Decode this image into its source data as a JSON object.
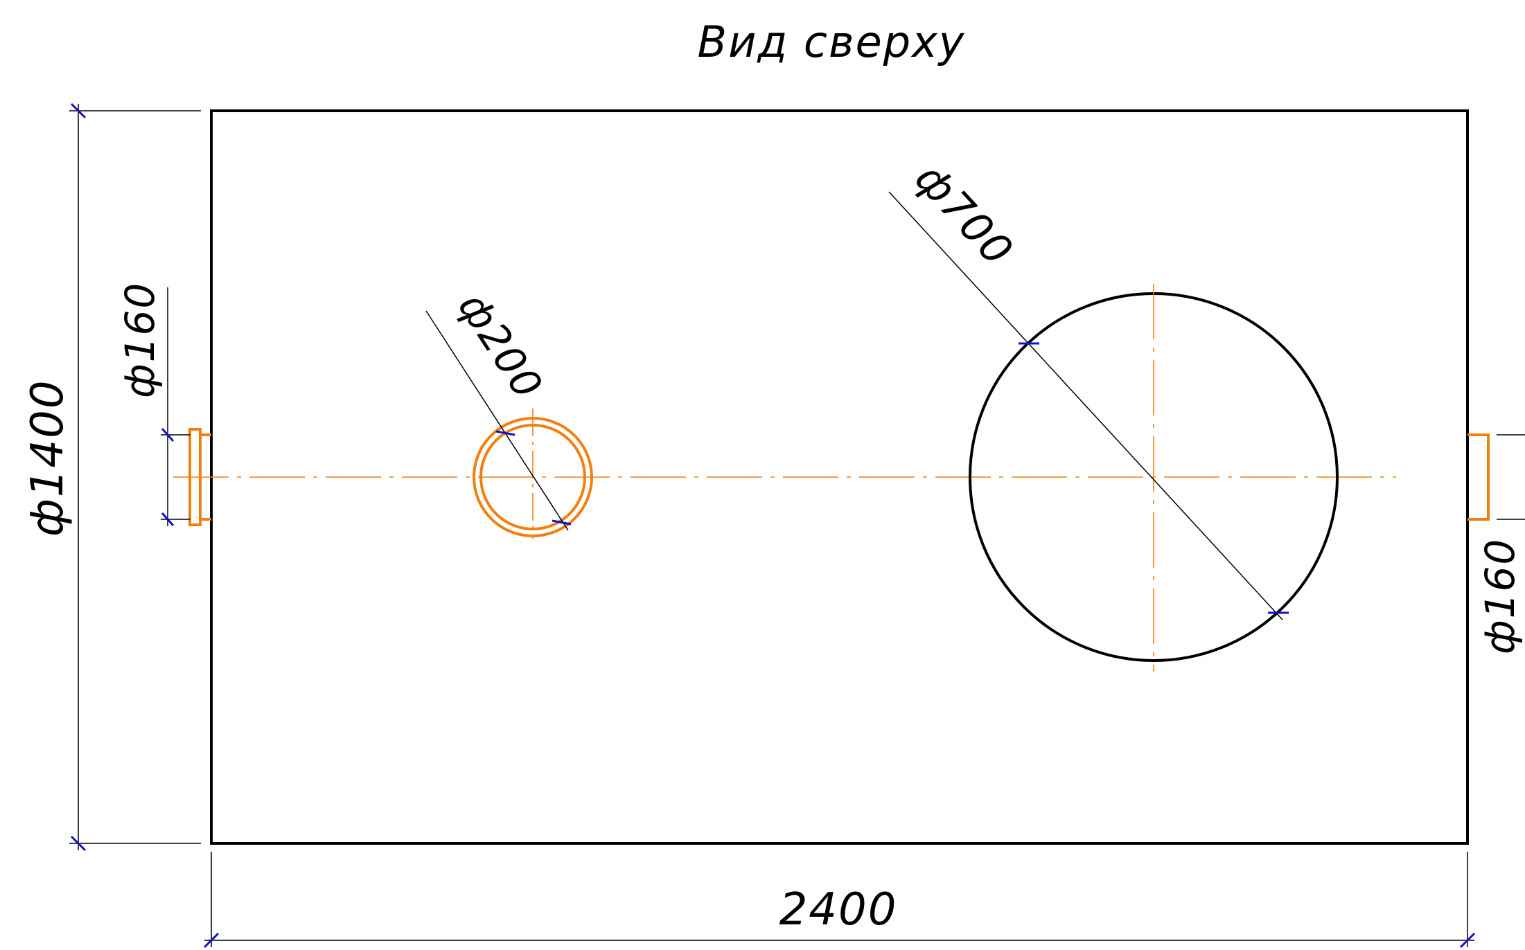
{
  "title": "Вид сверху",
  "dimensions": {
    "width_label": "2400",
    "height_label": "ф1400",
    "inlet_label": "ф160",
    "outlet_label": "ф160",
    "small_hole_label": "ф200",
    "large_hole_label": "ф700"
  },
  "colors": {
    "outline": "#000000",
    "pipe": "#f08010",
    "centerline": "#f08010",
    "tick": "#1010d0"
  }
}
